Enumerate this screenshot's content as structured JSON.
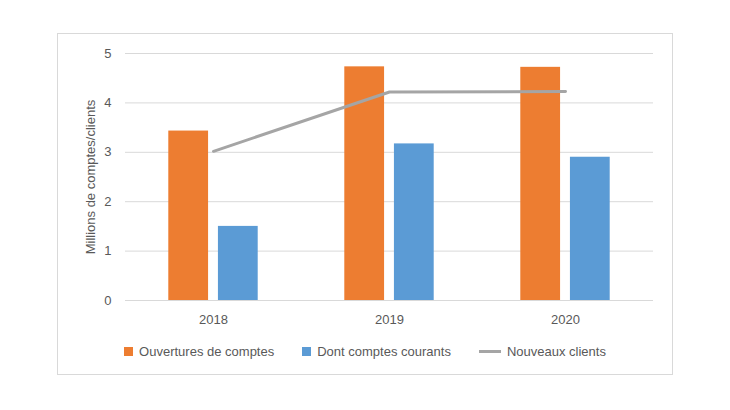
{
  "chart_data": {
    "type": "bar",
    "y_label": "Millions de comptes/clients",
    "categories": [
      "2018",
      "2019",
      "2020"
    ],
    "series": [
      {
        "name": "Ouvertures de comptes",
        "type": "bar",
        "color": "#ed7d31",
        "values": [
          3.43,
          4.73,
          4.72
        ]
      },
      {
        "name": "Dont comptes courants",
        "type": "bar",
        "color": "#5b9bd5",
        "values": [
          1.5,
          3.17,
          2.9
        ]
      },
      {
        "name": "Nouveaux clients",
        "type": "line",
        "color": "#a5a5a5",
        "values": [
          3.02,
          4.22,
          4.23
        ]
      }
    ],
    "ylim": [
      0,
      5
    ],
    "yticks": [
      0,
      1,
      2,
      3,
      4,
      5
    ],
    "grid": true,
    "legend": "bottom"
  }
}
